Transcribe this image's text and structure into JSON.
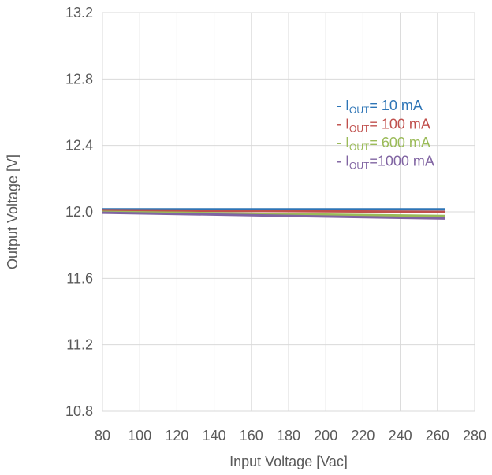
{
  "chart_data": {
    "type": "line",
    "title": "",
    "xlabel": "Input Voltage [Vac]",
    "ylabel": "Output Voltage [V]",
    "xlim": [
      80,
      280
    ],
    "ylim": [
      10.8,
      13.2
    ],
    "x_ticks": [
      80,
      100,
      120,
      140,
      160,
      180,
      200,
      220,
      240,
      260,
      280
    ],
    "y_ticks": [
      10.8,
      11.2,
      11.6,
      12.0,
      12.4,
      12.8,
      13.2
    ],
    "y_tick_labels": [
      "10.8",
      "11.2",
      "11.6",
      "12.0",
      "12.4",
      "12.8",
      "13.2"
    ],
    "grid": true,
    "legend_position": "top-right",
    "series": [
      {
        "legend_prefix": "- I",
        "legend_sub": "OUT",
        "legend_suffix": "=   10 mA",
        "color": "#2E75B6",
        "x": [
          80,
          264
        ],
        "y": [
          12.015,
          12.015
        ]
      },
      {
        "legend_prefix": "- I",
        "legend_sub": "OUT",
        "legend_suffix": "= 100 mA",
        "color": "#C0504D",
        "x": [
          80,
          264
        ],
        "y": [
          12.01,
          12.0
        ]
      },
      {
        "legend_prefix": "- I",
        "legend_sub": "OUT",
        "legend_suffix": "= 600 mA",
        "color": "#9BBB59",
        "x": [
          80,
          264
        ],
        "y": [
          12.0,
          11.975
        ]
      },
      {
        "legend_prefix": "- I",
        "legend_sub": "OUT",
        "legend_suffix": "=1000 mA",
        "color": "#8064A2",
        "x": [
          80,
          264
        ],
        "y": [
          11.995,
          11.96
        ]
      }
    ]
  }
}
